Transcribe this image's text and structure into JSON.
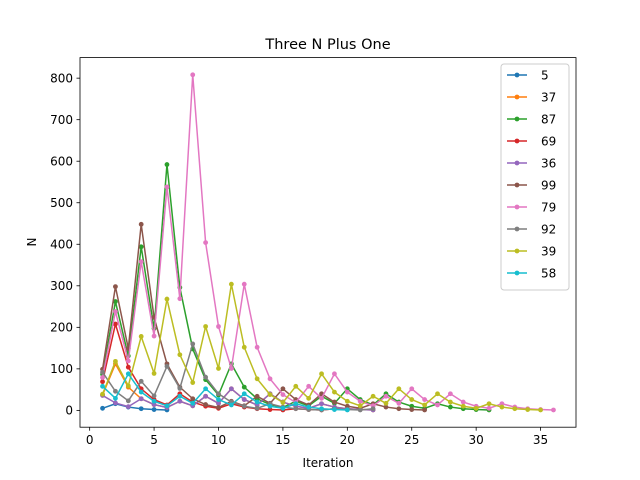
{
  "chart_data": {
    "type": "line",
    "title": "Three N Plus One",
    "xlabel": "Iteration",
    "ylabel": "N",
    "xlim": [
      -0.75,
      37.75
    ],
    "ylim": [
      -40.5,
      849.5
    ],
    "xticks": [
      0,
      5,
      10,
      15,
      20,
      25,
      30,
      35
    ],
    "yticks": [
      0,
      100,
      200,
      300,
      400,
      500,
      600,
      700,
      800
    ],
    "legend_position": "top-right",
    "grid": false,
    "series": [
      {
        "name": "5",
        "color": "#1f77b4",
        "x": [
          1,
          2,
          3,
          4,
          5,
          6
        ],
        "values": [
          5,
          16,
          8,
          4,
          2,
          1
        ]
      },
      {
        "name": "37",
        "color": "#ff7f0e",
        "x": [
          1,
          2,
          3,
          4,
          5,
          6,
          7,
          8,
          9,
          10,
          11,
          12,
          13,
          14,
          15,
          16,
          17,
          18,
          19,
          20,
          21,
          22
        ],
        "values": [
          37,
          112,
          56,
          28,
          14,
          7,
          22,
          11,
          34,
          17,
          52,
          26,
          13,
          40,
          20,
          10,
          5,
          16,
          8,
          4,
          2,
          1
        ]
      },
      {
        "name": "87",
        "color": "#2ca02c",
        "x": [
          1,
          2,
          3,
          4,
          5,
          6,
          7,
          8,
          9,
          10,
          11,
          12,
          13,
          14,
          15,
          16,
          17,
          18,
          19,
          20,
          21,
          22,
          23,
          24,
          25,
          26,
          27,
          28,
          29,
          30,
          31
        ],
        "values": [
          87,
          262,
          131,
          394,
          197,
          592,
          296,
          148,
          74,
          37,
          112,
          56,
          28,
          14,
          7,
          22,
          11,
          34,
          17,
          52,
          26,
          13,
          40,
          20,
          10,
          5,
          16,
          8,
          4,
          2,
          1
        ]
      },
      {
        "name": "69",
        "color": "#d62728",
        "x": [
          1,
          2,
          3,
          4,
          5,
          6,
          7,
          8,
          9,
          10,
          11,
          12,
          13,
          14,
          15,
          16,
          17,
          18,
          19,
          20
        ],
        "values": [
          69,
          208,
          104,
          52,
          26,
          13,
          40,
          20,
          10,
          5,
          16,
          8,
          4,
          2,
          1,
          4,
          2,
          1,
          4,
          2
        ]
      },
      {
        "name": "36",
        "color": "#9467bd",
        "x": [
          1,
          2,
          3,
          4,
          5,
          6,
          7,
          8,
          9,
          10,
          11,
          12,
          13,
          14,
          15,
          16,
          17,
          18,
          19,
          20,
          21,
          22
        ],
        "values": [
          36,
          18,
          9,
          28,
          14,
          7,
          22,
          11,
          34,
          17,
          52,
          26,
          13,
          40,
          20,
          10,
          5,
          16,
          8,
          4,
          2,
          1
        ]
      },
      {
        "name": "99",
        "color": "#8c564b",
        "x": [
          1,
          2,
          3,
          4,
          5,
          6,
          7,
          8,
          9,
          10,
          11,
          12,
          13,
          14,
          15,
          16,
          17,
          18,
          19,
          20,
          21,
          22,
          23,
          24,
          25,
          26
        ],
        "values": [
          99,
          298,
          149,
          448,
          224,
          112,
          56,
          28,
          14,
          7,
          22,
          11,
          34,
          17,
          52,
          26,
          13,
          40,
          20,
          10,
          5,
          16,
          8,
          4,
          2,
          1
        ]
      },
      {
        "name": "79",
        "color": "#e377c2",
        "x": [
          1,
          2,
          3,
          4,
          5,
          6,
          7,
          8,
          9,
          10,
          11,
          12,
          13,
          14,
          15,
          16,
          17,
          18,
          19,
          20,
          21,
          22,
          23,
          24,
          25,
          26,
          27,
          28,
          29,
          30,
          31,
          32,
          33,
          34,
          35,
          36
        ],
        "values": [
          79,
          238,
          119,
          358,
          179,
          538,
          269,
          808,
          404,
          202,
          101,
          304,
          152,
          76,
          38,
          19,
          58,
          29,
          88,
          44,
          22,
          11,
          34,
          17,
          52,
          26,
          13,
          40,
          20,
          10,
          5,
          16,
          8,
          4,
          2,
          1
        ]
      },
      {
        "name": "92",
        "color": "#7f7f7f",
        "x": [
          1,
          2,
          3,
          4,
          5,
          6,
          7,
          8,
          9,
          10,
          11,
          12,
          13,
          14,
          15,
          16,
          17,
          18,
          19,
          20,
          21,
          22
        ],
        "values": [
          92,
          46,
          23,
          70,
          35,
          106,
          53,
          160,
          80,
          40,
          20,
          10,
          5,
          16,
          8,
          4,
          2,
          1,
          4,
          2,
          1,
          4
        ]
      },
      {
        "name": "39",
        "color": "#bcbd22",
        "x": [
          1,
          2,
          3,
          4,
          5,
          6,
          7,
          8,
          9,
          10,
          11,
          12,
          13,
          14,
          15,
          16,
          17,
          18,
          19,
          20,
          21,
          22,
          23,
          24,
          25,
          26,
          27,
          28,
          29,
          30,
          31,
          32,
          33,
          34,
          35
        ],
        "values": [
          39,
          118,
          59,
          178,
          89,
          268,
          134,
          67,
          202,
          101,
          304,
          152,
          76,
          38,
          19,
          58,
          29,
          88,
          44,
          22,
          11,
          34,
          17,
          52,
          26,
          13,
          40,
          20,
          10,
          5,
          16,
          8,
          4,
          2,
          1
        ]
      },
      {
        "name": "58",
        "color": "#17becf",
        "x": [
          1,
          2,
          3,
          4,
          5,
          6,
          7,
          8,
          9,
          10,
          11,
          12,
          13,
          14,
          15,
          16,
          17,
          18,
          19,
          20
        ],
        "values": [
          58,
          29,
          88,
          44,
          22,
          11,
          34,
          17,
          52,
          26,
          13,
          40,
          20,
          10,
          5,
          16,
          8,
          4,
          2,
          1
        ]
      }
    ]
  }
}
